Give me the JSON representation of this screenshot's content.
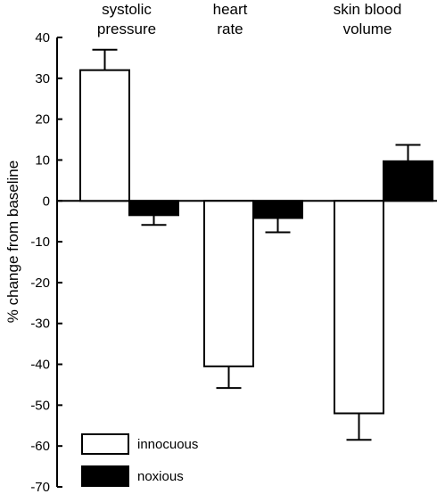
{
  "chart_data": {
    "type": "bar",
    "categories": [
      {
        "line1": "systolic",
        "line2": "pressure"
      },
      {
        "line1": "heart",
        "line2": "rate"
      },
      {
        "line1": "skin blood",
        "line2": "volume"
      }
    ],
    "series": [
      {
        "name": "innocuous",
        "values": [
          32,
          -40.5,
          -52
        ],
        "errors": [
          5,
          5.3,
          6.5
        ],
        "fill": "#ffffff"
      },
      {
        "name": "noxious",
        "values": [
          -3.5,
          -4.2,
          9.7
        ],
        "errors": [
          2.4,
          3.5,
          4
        ],
        "fill": "#000000"
      }
    ],
    "ylabel": "% change from baseline",
    "ylim": [
      -70,
      40
    ],
    "yticks": [
      40,
      30,
      20,
      10,
      0,
      -10,
      -20,
      -30,
      -40,
      -50,
      -60,
      -70
    ],
    "legend_position": "bottom-left",
    "grid": false
  }
}
